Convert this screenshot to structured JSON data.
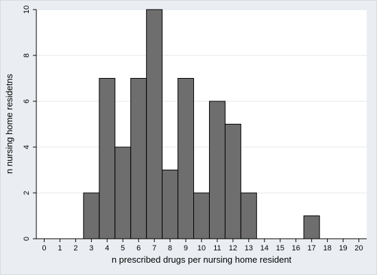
{
  "chart_data": {
    "type": "bar",
    "xlabel": "n prescribed drugs per nursing home resident",
    "ylabel": "n nursing home residetns",
    "x": [
      3,
      4,
      5,
      6,
      7,
      8,
      9,
      10,
      11,
      12,
      13,
      17
    ],
    "values": [
      2,
      7,
      4,
      7,
      10,
      3,
      7,
      2,
      6,
      5,
      2,
      1
    ],
    "xlim": [
      -0.5,
      20.5
    ],
    "ylim": [
      0,
      10
    ],
    "xticks": [
      0,
      1,
      2,
      3,
      4,
      5,
      6,
      7,
      8,
      9,
      10,
      11,
      12,
      13,
      14,
      15,
      16,
      17,
      18,
      19,
      20
    ],
    "yticks": [
      0,
      2,
      4,
      6,
      8,
      10
    ],
    "grid": true,
    "bar_color": "#6e6e6e",
    "bar_edge_color": "#000000",
    "panel_color": "#eaeef2",
    "plot_background": "#ffffff"
  }
}
